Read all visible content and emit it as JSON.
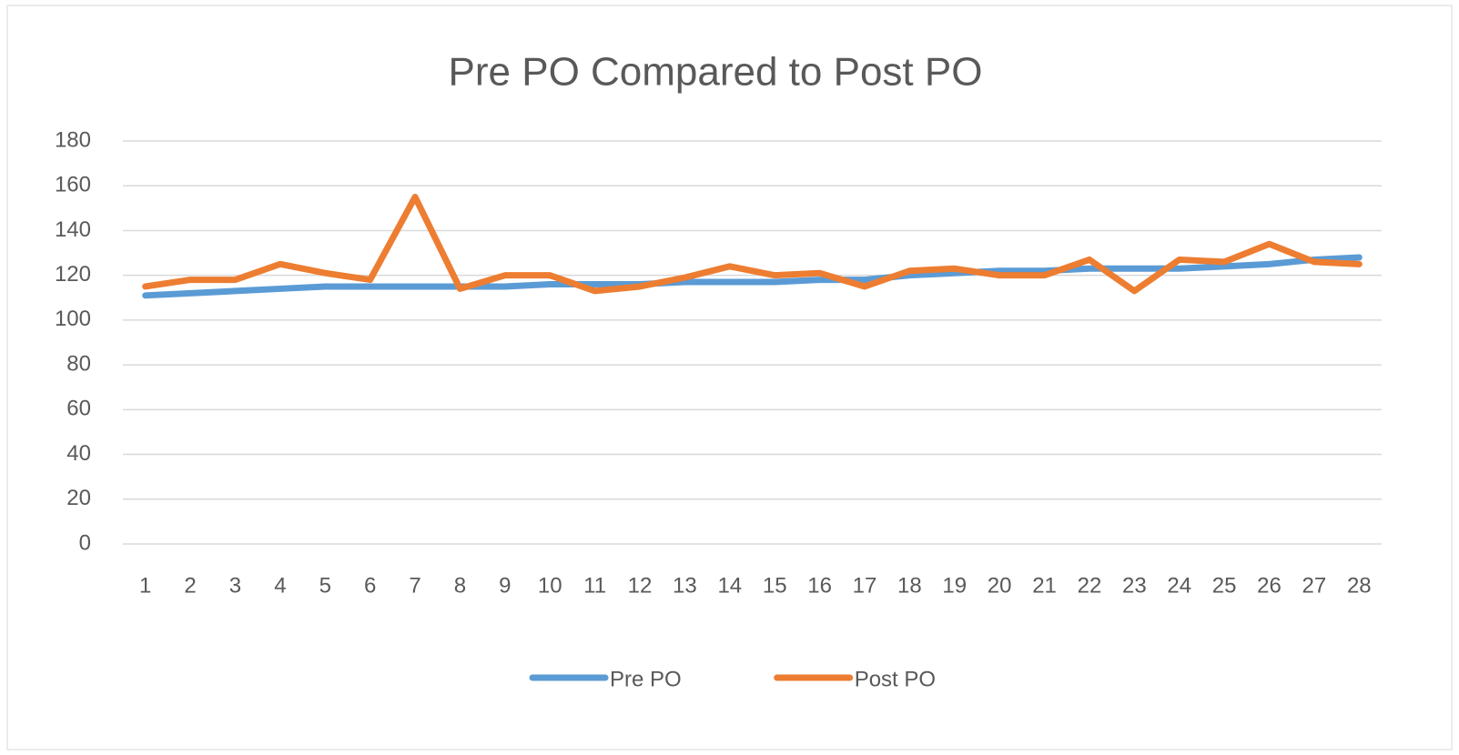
{
  "chart_data": {
    "type": "line",
    "title": "Pre PO Compared to Post PO",
    "categories": [
      "1",
      "2",
      "3",
      "4",
      "5",
      "6",
      "7",
      "8",
      "9",
      "10",
      "11",
      "12",
      "13",
      "14",
      "15",
      "16",
      "17",
      "18",
      "19",
      "20",
      "21",
      "22",
      "23",
      "24",
      "25",
      "26",
      "27",
      "28"
    ],
    "series": [
      {
        "name": "Pre PO",
        "color": "#5b9bd5",
        "values": [
          111,
          112,
          113,
          114,
          115,
          115,
          115,
          115,
          115,
          116,
          116,
          116,
          117,
          117,
          117,
          118,
          118,
          120,
          121,
          122,
          122,
          123,
          123,
          123,
          124,
          125,
          127,
          128
        ]
      },
      {
        "name": "Post PO",
        "color": "#ed7d31",
        "values": [
          115,
          118,
          118,
          125,
          121,
          118,
          155,
          114,
          120,
          120,
          113,
          115,
          119,
          124,
          120,
          121,
          115,
          122,
          123,
          120,
          120,
          127,
          113,
          127,
          126,
          134,
          126,
          125
        ]
      }
    ],
    "ylim": [
      0,
      180
    ],
    "yticks": [
      0,
      20,
      40,
      60,
      80,
      100,
      120,
      140,
      160,
      180
    ],
    "grid": true,
    "legend": "bottom"
  }
}
